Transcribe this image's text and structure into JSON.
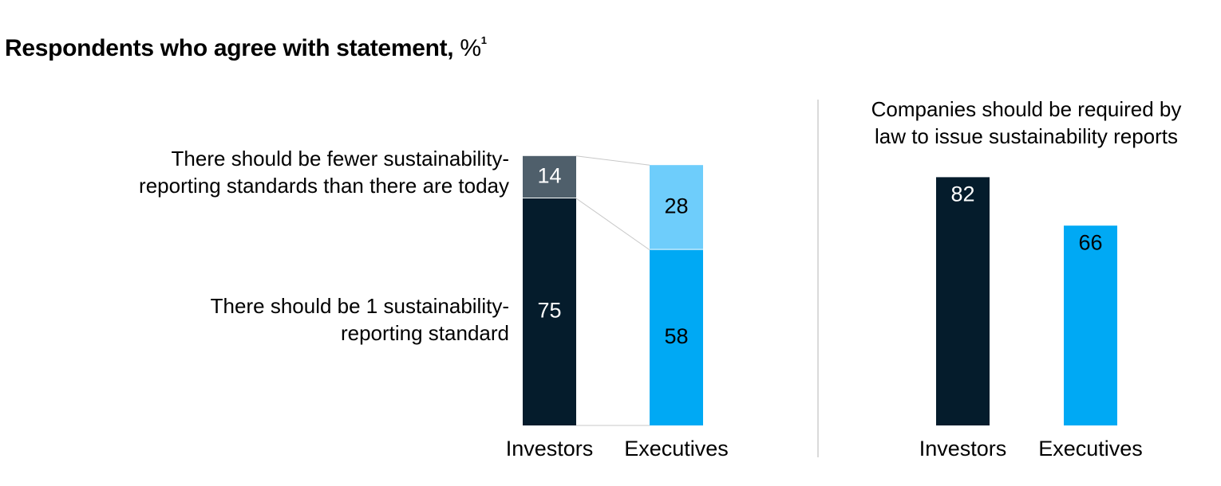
{
  "title": {
    "main": "Respondents who agree with statement,",
    "unit": "%",
    "footnote": "1"
  },
  "colors": {
    "investors_dark": "#051c2c",
    "investors_gray": "#4f5f6b",
    "exec_blue": "#00a9f4",
    "exec_light": "#6ecdfb"
  },
  "chart_data": [
    {
      "type": "bar",
      "stacked": true,
      "categories": [
        "Investors",
        "Executives"
      ],
      "series": [
        {
          "name": "There should be 1 sustainability-reporting standard",
          "values": [
            75,
            58
          ]
        },
        {
          "name": "There should be fewer sustainability-reporting standards than there are today",
          "values": [
            14,
            28
          ]
        }
      ],
      "segment_labels": {
        "lines_1": [
          "There should be fewer sustainability-",
          "reporting standards than there are today"
        ],
        "lines_2": [
          "There should be 1 sustainability-",
          "reporting standard"
        ]
      },
      "ylim": [
        0,
        100
      ]
    },
    {
      "type": "bar",
      "title_lines": [
        "Companies should be required by",
        "law to issue sustainability reports"
      ],
      "categories": [
        "Investors",
        "Executives"
      ],
      "values": [
        82,
        66
      ],
      "ylim": [
        0,
        100
      ]
    }
  ]
}
